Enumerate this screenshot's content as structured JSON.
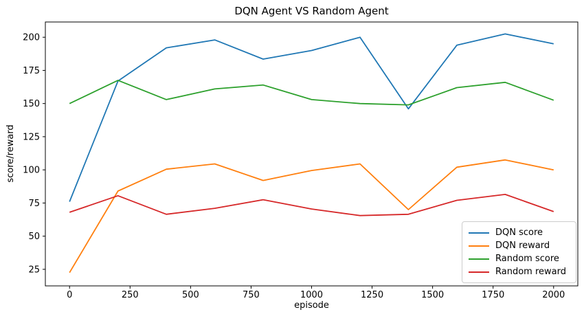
{
  "chart_data": {
    "type": "line",
    "title": "DQN Agent VS Random Agent",
    "xlabel": "episode",
    "ylabel": "score/reward",
    "x": [
      0,
      200,
      400,
      600,
      800,
      1000,
      1200,
      1400,
      1600,
      1800,
      2000
    ],
    "series": [
      {
        "name": "DQN score",
        "color": "#1f77b4",
        "values": [
          76,
          167,
          192,
          198,
          183.5,
          190,
          200,
          146,
          194,
          202.5,
          195
        ]
      },
      {
        "name": "DQN reward",
        "color": "#ff7f0e",
        "values": [
          22.5,
          84,
          100.5,
          104.5,
          92,
          99.5,
          104.5,
          70,
          102,
          107.5,
          100
        ]
      },
      {
        "name": "Random score",
        "color": "#2ca02c",
        "values": [
          150,
          167.5,
          153,
          161,
          164,
          153,
          150,
          149,
          162,
          166,
          152.5
        ]
      },
      {
        "name": "Random reward",
        "color": "#d62728",
        "values": [
          68,
          80.5,
          66.5,
          71,
          77.5,
          70.5,
          65.5,
          66.5,
          77,
          81.5,
          68.5
        ]
      }
    ],
    "xlim": [
      -100,
      2100
    ],
    "ylim": [
      12.5,
      211.5
    ],
    "xticks": [
      0,
      250,
      500,
      750,
      1000,
      1250,
      1500,
      1750,
      2000
    ],
    "yticks": [
      25,
      50,
      75,
      100,
      125,
      150,
      175,
      200
    ],
    "grid": false,
    "legend_position": "lower right",
    "axis_color": "#000000",
    "tick_label_color": "#000000"
  }
}
